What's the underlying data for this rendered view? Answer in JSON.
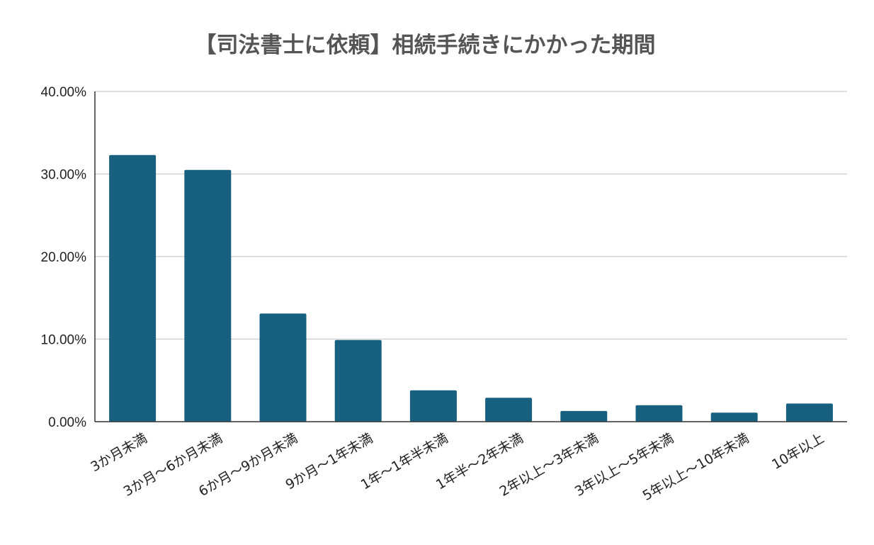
{
  "chart_data": {
    "type": "bar",
    "title": "【司法書士に依頼】相続手続きにかかった期間",
    "xlabel": "",
    "ylabel": "",
    "ylim": [
      0,
      40
    ],
    "y_ticks": [
      "0.00%",
      "10.00%",
      "20.00%",
      "30.00%",
      "40.00%"
    ],
    "y_tick_values": [
      0,
      10,
      20,
      30,
      40
    ],
    "grid": true,
    "legend": "none",
    "bar_color": "#17607f",
    "categories": [
      "3か月未満",
      "3か月～6か月未満",
      "6か月～9か月未満",
      "9か月～1年未満",
      "1年～1年半未満",
      "1年半～2年未満",
      "2年以上～3年未満",
      "3年以上～5年未満",
      "5年以上～10年未満",
      "10年以上"
    ],
    "values": [
      32.3,
      30.5,
      13.1,
      9.9,
      3.8,
      2.9,
      1.3,
      2.0,
      1.1,
      2.2
    ]
  }
}
